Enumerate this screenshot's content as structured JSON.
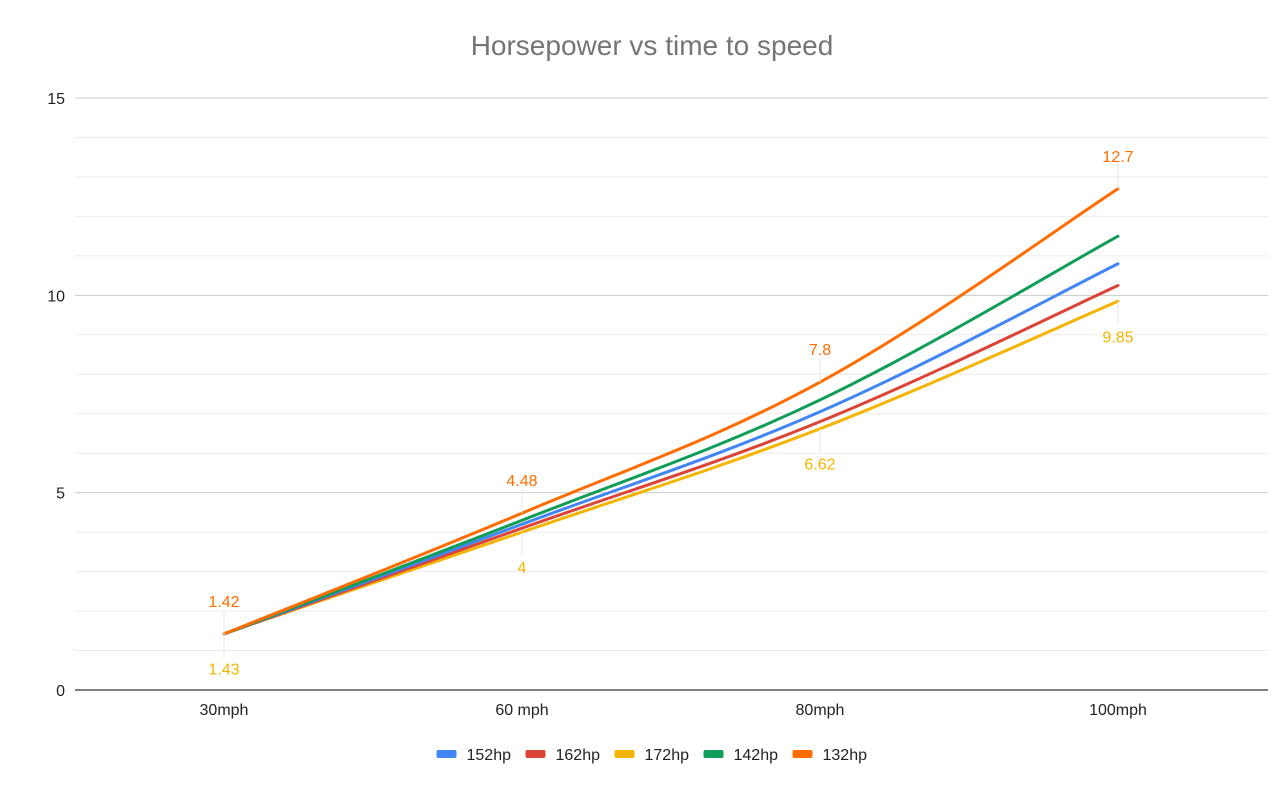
{
  "chart_data": {
    "type": "line",
    "title": "Horsepower vs time to speed",
    "xlabel": "",
    "ylabel": "",
    "categories": [
      "30mph",
      "60 mph",
      "80mph",
      "100mph"
    ],
    "ylim": [
      0,
      15
    ],
    "y_ticks": [
      0,
      5,
      10,
      15
    ],
    "minor_gridlines": true,
    "legend_position": "bottom",
    "series": [
      {
        "name": "152hp",
        "color": "#4285f4",
        "values": [
          1.42,
          4.2,
          7.05,
          10.8
        ]
      },
      {
        "name": "162hp",
        "color": "#db4437",
        "values": [
          1.42,
          4.1,
          6.8,
          10.25
        ]
      },
      {
        "name": "172hp",
        "color": "#f4b400",
        "values": [
          1.43,
          4,
          6.62,
          9.85
        ]
      },
      {
        "name": "142hp",
        "color": "#0f9d58",
        "values": [
          1.42,
          4.3,
          7.35,
          11.5
        ]
      },
      {
        "name": "132hp",
        "color": "#ff6d01",
        "values": [
          1.42,
          4.48,
          7.8,
          12.7
        ]
      }
    ],
    "data_labels": [
      {
        "series": "132hp",
        "category": "30mph",
        "text": "1.42",
        "position": "above"
      },
      {
        "series": "172hp",
        "category": "30mph",
        "text": "1.43",
        "position": "below"
      },
      {
        "series": "132hp",
        "category": "60 mph",
        "text": "4.48",
        "position": "above"
      },
      {
        "series": "172hp",
        "category": "60 mph",
        "text": "4",
        "position": "below"
      },
      {
        "series": "132hp",
        "category": "80mph",
        "text": "7.8",
        "position": "above"
      },
      {
        "series": "172hp",
        "category": "80mph",
        "text": "6.62",
        "position": "below"
      },
      {
        "series": "132hp",
        "category": "100mph",
        "text": "12.7",
        "position": "above"
      },
      {
        "series": "172hp",
        "category": "100mph",
        "text": "9.85",
        "position": "below"
      }
    ]
  }
}
